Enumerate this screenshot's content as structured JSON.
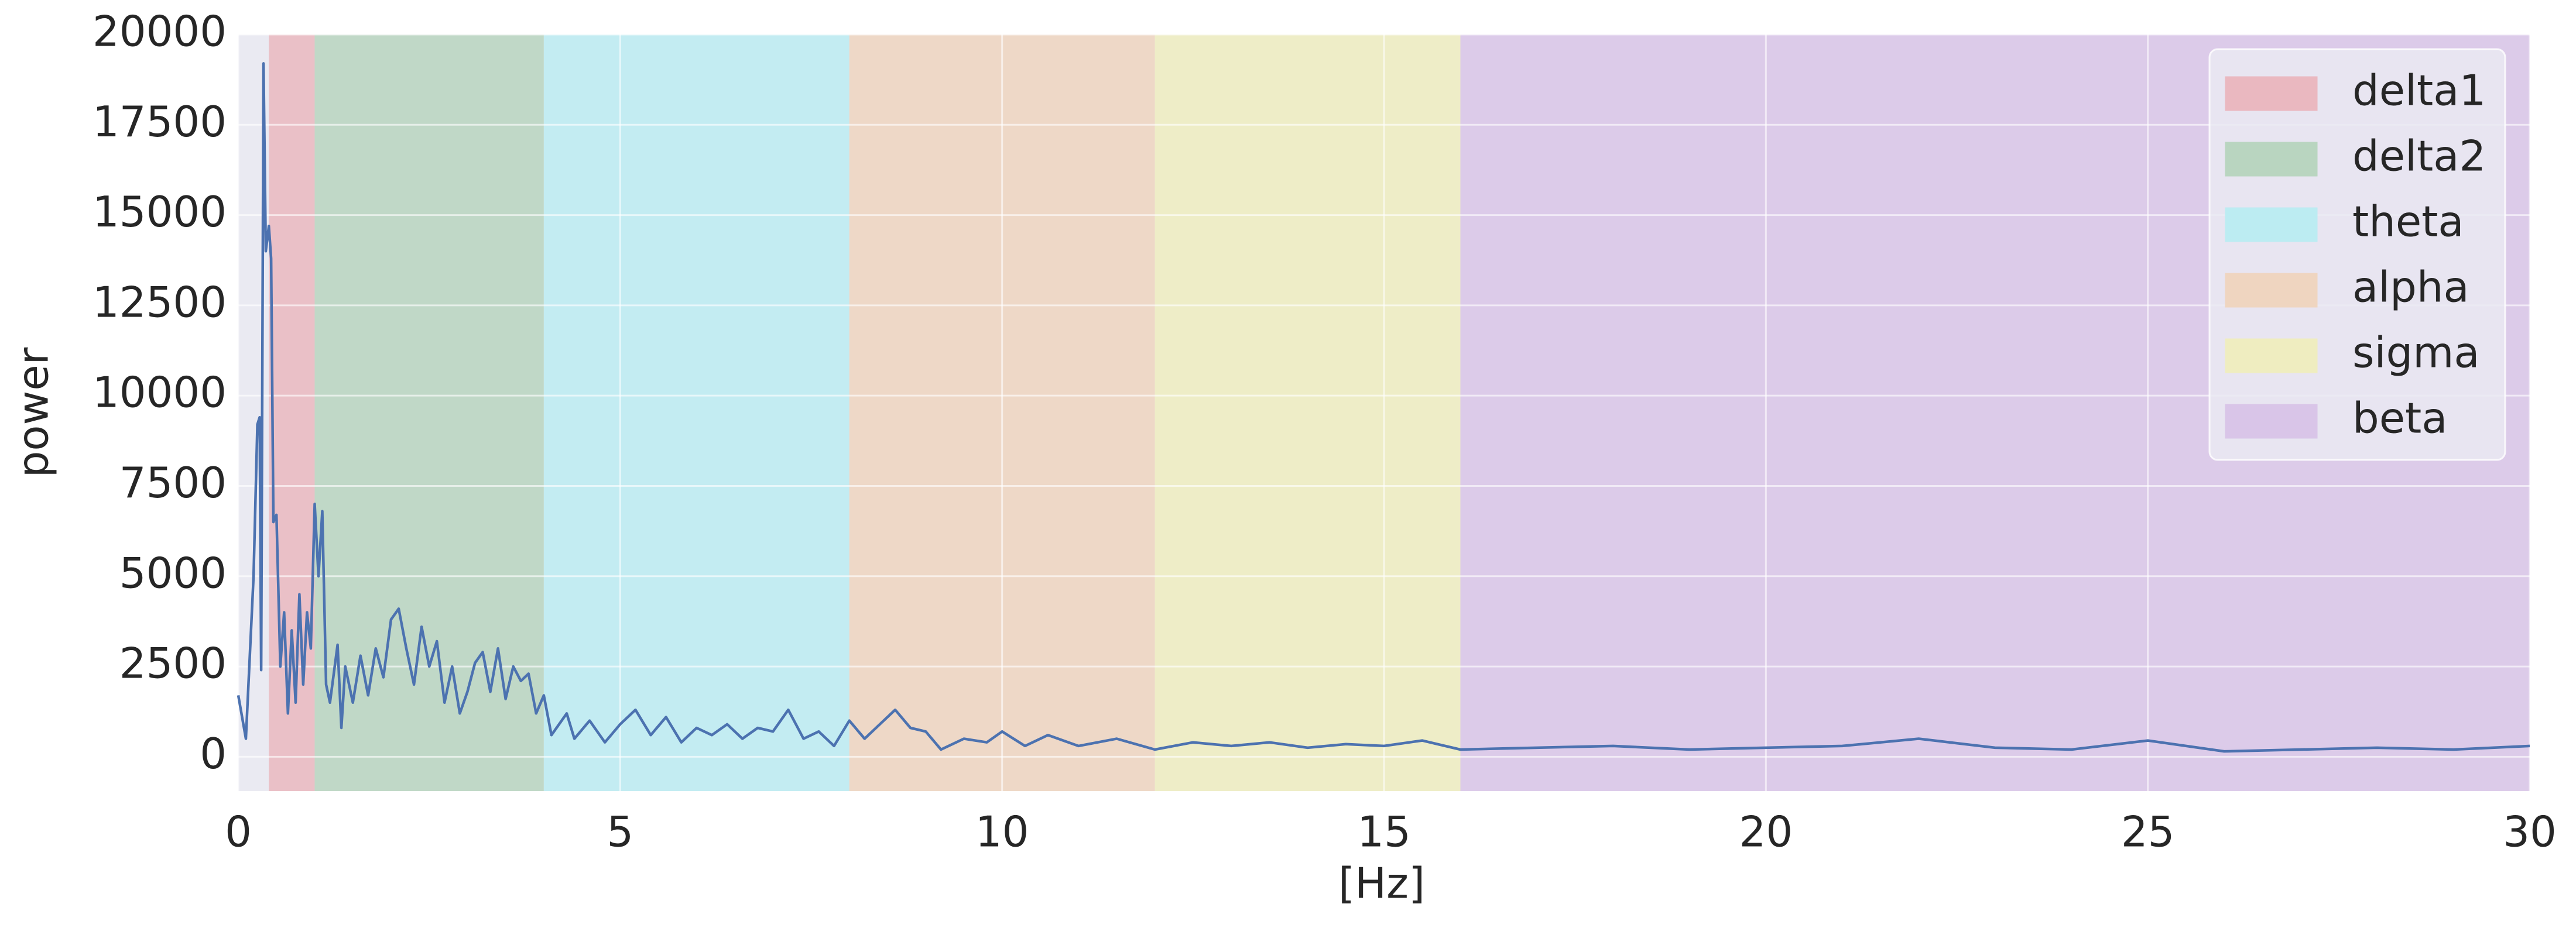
{
  "chart_data": {
    "type": "line",
    "xlabel": "[Hz]",
    "ylabel": "power",
    "xlim": [
      0,
      30
    ],
    "ylim": [
      -950,
      20000
    ],
    "xticks": [
      0,
      5,
      10,
      15,
      20,
      25,
      30
    ],
    "yticks": [
      0,
      2500,
      5000,
      7500,
      10000,
      12500,
      15000,
      17500,
      20000
    ],
    "grid": true,
    "legend": "upper right",
    "color": "#4c72b0",
    "bands": [
      {
        "name": "delta1",
        "start": 0.4,
        "end": 1,
        "color": "#eab8c0"
      },
      {
        "name": "delta2",
        "start": 1,
        "end": 4,
        "color": "#b9d5c0"
      },
      {
        "name": "theta",
        "start": 4,
        "end": 8,
        "color": "#bcecf2"
      },
      {
        "name": "alpha",
        "start": 8,
        "end": 12,
        "color": "#efd5c0"
      },
      {
        "name": "sigma",
        "start": 12,
        "end": 16,
        "color": "#efedc0"
      },
      {
        "name": "beta",
        "start": 16,
        "end": 30,
        "color": "#d9c5e8"
      }
    ],
    "x": [
      0,
      0.1,
      0.2,
      0.25,
      0.28,
      0.3,
      0.33,
      0.36,
      0.4,
      0.43,
      0.46,
      0.5,
      0.55,
      0.6,
      0.65,
      0.7,
      0.75,
      0.8,
      0.85,
      0.9,
      0.95,
      1.0,
      1.05,
      1.1,
      1.15,
      1.2,
      1.3,
      1.35,
      1.4,
      1.5,
      1.6,
      1.7,
      1.8,
      1.9,
      2.0,
      2.1,
      2.2,
      2.3,
      2.4,
      2.5,
      2.6,
      2.7,
      2.8,
      2.9,
      3.0,
      3.1,
      3.2,
      3.3,
      3.4,
      3.5,
      3.6,
      3.7,
      3.8,
      3.9,
      4.0,
      4.1,
      4.3,
      4.4,
      4.6,
      4.8,
      5.0,
      5.2,
      5.4,
      5.6,
      5.8,
      6.0,
      6.2,
      6.4,
      6.6,
      6.8,
      7.0,
      7.2,
      7.4,
      7.6,
      7.8,
      8.0,
      8.2,
      8.4,
      8.6,
      8.8,
      9.0,
      9.2,
      9.5,
      9.8,
      10.0,
      10.3,
      10.6,
      11.0,
      11.5,
      12.0,
      12.5,
      13.0,
      13.5,
      14.0,
      14.5,
      15.0,
      15.5,
      16.0,
      17,
      18,
      19,
      20,
      21,
      22,
      23,
      24,
      25,
      26,
      27,
      28,
      29,
      30
    ],
    "values": [
      1700,
      500,
      5000,
      9200,
      9400,
      2400,
      19200,
      14000,
      14700,
      13800,
      6500,
      6700,
      2500,
      4000,
      1200,
      3500,
      1500,
      4500,
      2000,
      4000,
      3000,
      7000,
      5000,
      6800,
      2000,
      1500,
      3100,
      800,
      2500,
      1500,
      2800,
      1700,
      3000,
      2200,
      3800,
      4100,
      3000,
      2000,
      3600,
      2500,
      3200,
      1500,
      2500,
      1200,
      1800,
      2600,
      2900,
      1800,
      3000,
      1600,
      2500,
      2100,
      2300,
      1200,
      1700,
      600,
      1200,
      500,
      1000,
      400,
      900,
      1300,
      600,
      1100,
      400,
      800,
      600,
      900,
      500,
      800,
      700,
      1300,
      500,
      700,
      300,
      1000,
      500,
      900,
      1300,
      800,
      700,
      200,
      500,
      400,
      700,
      300,
      600,
      300,
      500,
      200,
      400,
      300,
      400,
      250,
      350,
      300,
      450,
      200,
      250,
      300,
      200,
      250,
      300,
      500,
      250,
      200,
      450,
      150,
      200,
      250,
      200,
      300
    ]
  }
}
